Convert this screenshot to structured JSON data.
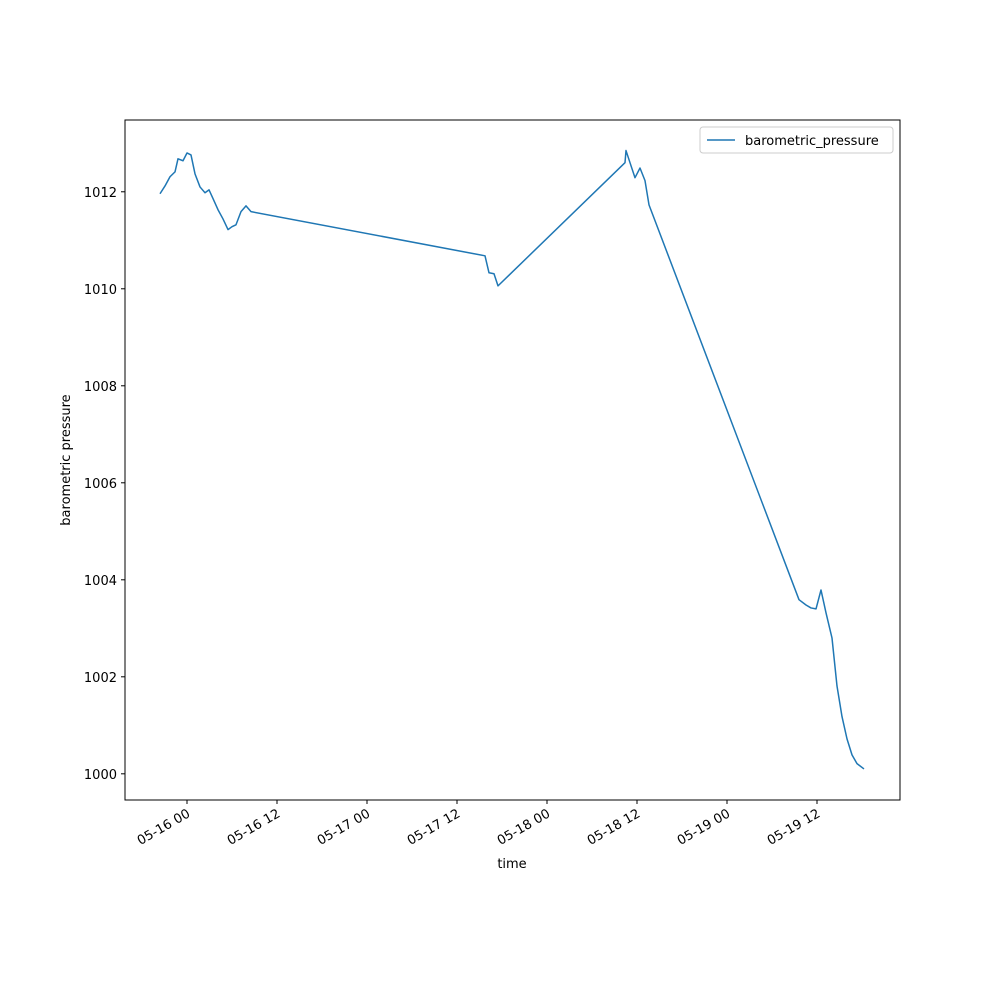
{
  "chart_data": {
    "type": "line",
    "x_label": "time",
    "y_label": "barometric pressure",
    "legend": "upper right",
    "grid": false,
    "xlim": [
      "05-15 15:44",
      "05-19 23:04"
    ],
    "xticks": [
      "05-16 00",
      "05-16 12",
      "05-17 00",
      "05-17 12",
      "05-18 00",
      "05-18 12",
      "05-19 00",
      "05-19 12"
    ],
    "ylim": [
      999.46,
      1013.48
    ],
    "yticks": [
      1000,
      1002,
      1004,
      1006,
      1008,
      1010,
      1012
    ],
    "x": [
      "05-15 20:24",
      "05-15 21:04",
      "05-15 21:44",
      "05-15 22:24",
      "05-15 22:48",
      "05-15 23:28",
      "05-16 00:00",
      "05-16 00:32",
      "05-16 01:04",
      "05-16 01:44",
      "05-16 02:24",
      "05-16 02:56",
      "05-16 03:28",
      "05-16 04:08",
      "05-16 04:48",
      "05-16 05:28",
      "05-16 06:00",
      "05-16 06:32",
      "05-16 07:12",
      "05-16 07:52",
      "05-16 08:32",
      "05-17 15:44",
      "05-17 16:16",
      "05-17 16:56",
      "05-17 17:28",
      "05-18 10:24",
      "05-18 10:32",
      "05-18 11:04",
      "05-18 11:44",
      "05-18 12:24",
      "05-18 13:04",
      "05-18 13:36",
      "05-19 09:36",
      "05-19 10:32",
      "05-19 11:12",
      "05-19 11:52",
      "05-19 12:32",
      "05-19 13:12",
      "05-19 14:00",
      "05-19 14:40",
      "05-19 15:20",
      "05-19 16:00",
      "05-19 16:40",
      "05-19 17:20",
      "05-19 18:16"
    ],
    "series": [
      {
        "name": "barometric_pressure",
        "color": "#1f77b4",
        "values": [
          1011.96,
          1012.12,
          1012.31,
          1012.41,
          1012.68,
          1012.64,
          1012.8,
          1012.76,
          1012.37,
          1012.1,
          1011.98,
          1012.04,
          1011.86,
          1011.63,
          1011.44,
          1011.22,
          1011.28,
          1011.32,
          1011.59,
          1011.71,
          1011.59,
          1010.68,
          1010.33,
          1010.31,
          1010.06,
          1012.6,
          1012.85,
          1012.6,
          1012.29,
          1012.49,
          1012.23,
          1011.73,
          1003.59,
          1003.48,
          1003.42,
          1003.4,
          1003.79,
          1003.32,
          1002.8,
          1001.81,
          1001.18,
          1000.72,
          1000.39,
          1000.21,
          1000.1
        ]
      }
    ]
  }
}
